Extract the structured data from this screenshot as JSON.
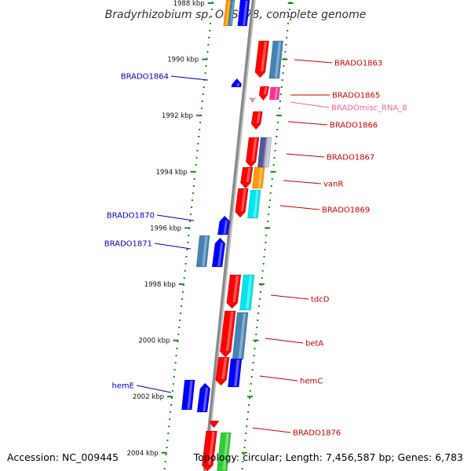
{
  "title": "Bradyrhizobium sp. ORS278, complete genome",
  "accession": "Accession: NC_009445",
  "topology": "Topology: circular; Length: 7,456,587 bp; Genes: 6,783",
  "colors": {
    "backbone": "#8a8a8a",
    "tick": "#1a8a1a",
    "forward_label": "#cc0000",
    "reverse_label": "#0000cc",
    "misc_rna_label": "#ee6699"
  },
  "ruler": [
    {
      "label": "1988 kbp"
    },
    {
      "label": "1990 kbp"
    },
    {
      "label": "1992 kbp"
    },
    {
      "label": "1994 kbp"
    },
    {
      "label": "1996 kbp"
    },
    {
      "label": "1998 kbp"
    },
    {
      "label": "2000 kbp"
    },
    {
      "label": "2002 kbp"
    },
    {
      "label": "2004 kbp"
    }
  ],
  "forward_genes": [
    {
      "name": "BRADO1863",
      "label_color": "#cc0000"
    },
    {
      "name": "BRADO1865",
      "label_color": "#cc0000"
    },
    {
      "name": "BRADOmisc_RNA_8",
      "label_color": "#ee6699"
    },
    {
      "name": "BRADO1866",
      "label_color": "#cc0000"
    },
    {
      "name": "BRADO1867",
      "label_color": "#cc0000"
    },
    {
      "name": "vanR",
      "label_color": "#cc0000"
    },
    {
      "name": "BRADO1869",
      "label_color": "#cc0000"
    },
    {
      "name": "tdcD",
      "label_color": "#cc0000"
    },
    {
      "name": "betA",
      "label_color": "#cc0000"
    },
    {
      "name": "hemC",
      "label_color": "#cc0000"
    },
    {
      "name": "BRADO1876",
      "label_color": "#cc0000"
    }
  ],
  "reverse_genes": [
    {
      "name": "BRADO1864",
      "label_color": "#0000cc"
    },
    {
      "name": "BRADO1870",
      "label_color": "#0000cc"
    },
    {
      "name": "BRADO1871",
      "label_color": "#0000cc"
    },
    {
      "name": "hemE",
      "label_color": "#0000cc"
    }
  ]
}
